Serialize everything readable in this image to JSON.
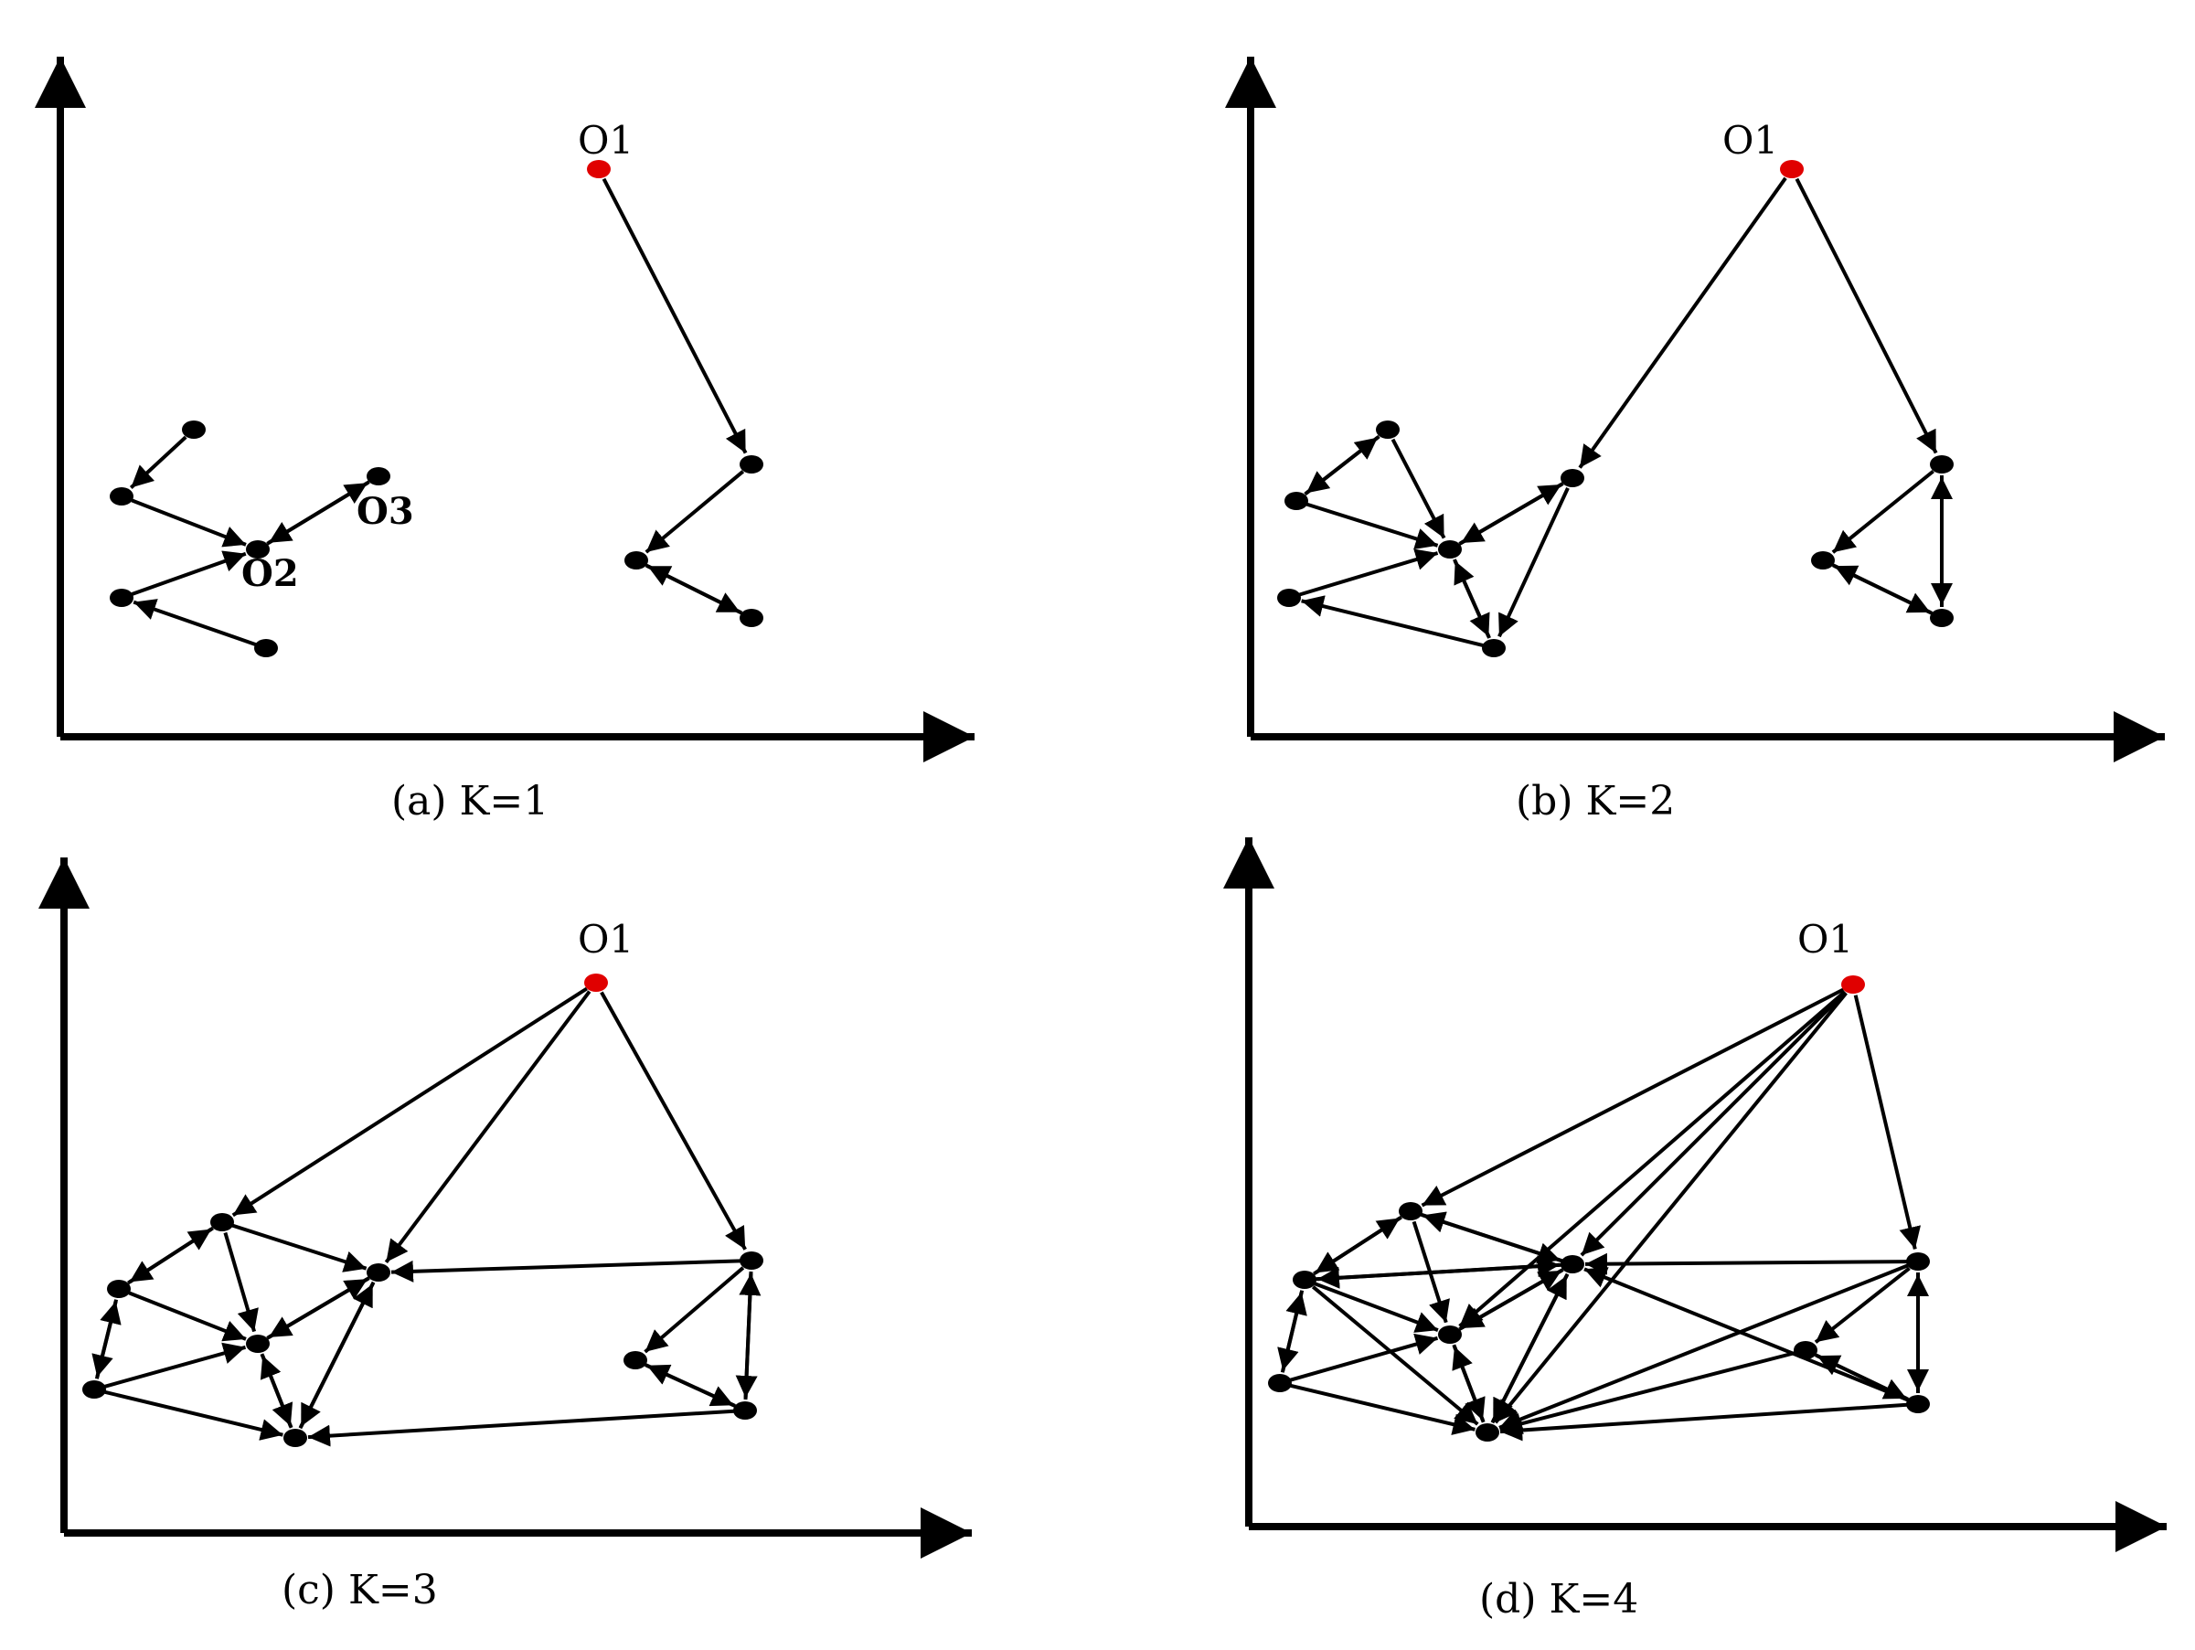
{
  "panels": [
    {
      "caption": "(a)  K=1",
      "labels": {
        "o1": "O1",
        "o2": "O2",
        "o3": "O3"
      },
      "colors": {
        "outlier": "#e00000",
        "node": "#000000"
      }
    },
    {
      "caption": "(b)  K=2",
      "labels": {
        "o1": "O1"
      }
    },
    {
      "caption": "(c)  K=3",
      "labels": {
        "o1": "O1"
      }
    },
    {
      "caption": "(d)  K=4",
      "labels": {
        "o1": "O1"
      }
    }
  ]
}
